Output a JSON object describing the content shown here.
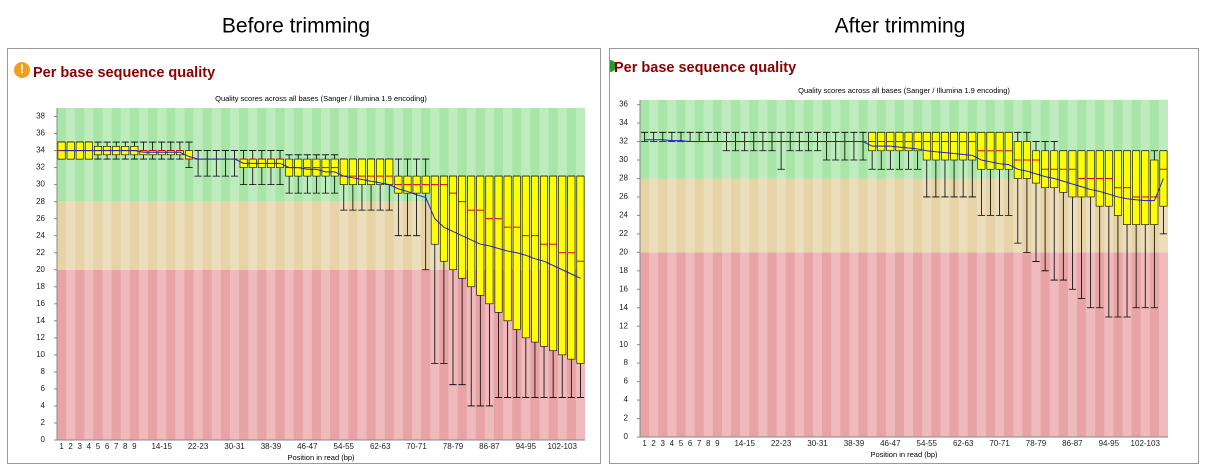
{
  "chart_data": [
    {
      "type": "box",
      "heading": "Before trimming",
      "title": "Per base sequence quality",
      "subtitle": "Quality scores across all bases (Sanger / Illumina 1.9 encoding)",
      "xlabel": "Position in read (bp)",
      "categories": [
        "1",
        "2",
        "3",
        "4",
        "5",
        "6",
        "7",
        "8",
        "9",
        null,
        null,
        "14-15",
        null,
        null,
        null,
        "22-23",
        null,
        null,
        null,
        "30-31",
        null,
        null,
        null,
        "38-39",
        null,
        null,
        null,
        "46-47",
        null,
        null,
        null,
        "54-55",
        null,
        null,
        null,
        "62-63",
        null,
        null,
        null,
        "70-71",
        null,
        null,
        null,
        "78-79",
        null,
        null,
        null,
        "86-87",
        null,
        null,
        null,
        "94-95",
        null,
        null,
        null,
        "102-103",
        null,
        null
      ],
      "low": [
        33,
        33,
        33,
        33,
        33,
        33,
        33,
        33,
        33,
        33,
        33,
        33,
        33,
        33,
        32,
        31,
        31,
        31,
        31,
        31,
        30,
        30,
        30,
        30,
        30,
        29,
        29,
        29,
        29,
        29,
        29,
        27,
        27,
        27,
        27,
        27,
        27,
        24,
        24,
        24,
        20,
        9,
        9,
        6.5,
        6.5,
        4,
        4,
        4,
        5,
        5,
        5,
        5,
        5,
        5,
        5,
        5,
        5,
        5
      ],
      "q1": [
        33,
        33,
        33,
        33,
        33.5,
        33.5,
        33.5,
        33.5,
        33.5,
        33.5,
        33.5,
        33.5,
        33.5,
        33.5,
        33,
        33,
        33,
        33,
        33,
        33,
        32,
        32,
        32,
        32,
        32,
        31,
        31,
        31,
        31,
        31,
        31,
        30,
        30,
        30,
        30,
        30,
        30,
        29,
        29,
        29,
        29,
        23,
        21,
        20,
        19,
        18,
        17,
        16,
        15,
        14,
        13,
        12,
        11.5,
        11,
        10.5,
        10,
        9.5,
        9
      ],
      "median": [
        34,
        34,
        34,
        34,
        34,
        34,
        34,
        34,
        34,
        34,
        34,
        34,
        34,
        34,
        33,
        33,
        33,
        33,
        33,
        33,
        33,
        33,
        33,
        33,
        33,
        32,
        32,
        32,
        32,
        32,
        32,
        31,
        31,
        31,
        31,
        31,
        31,
        30,
        30,
        30,
        30,
        30,
        30,
        29,
        28,
        27,
        27,
        26,
        26,
        25,
        25,
        24,
        24,
        23,
        23,
        22,
        22,
        21
      ],
      "q3": [
        35,
        35,
        35,
        35,
        34.5,
        34.5,
        34.5,
        34.5,
        34.5,
        34,
        34,
        34,
        34,
        34,
        34,
        33,
        33,
        33,
        33,
        33,
        33,
        33,
        33,
        33,
        33,
        33,
        33,
        33,
        33,
        33,
        33,
        33,
        33,
        33,
        33,
        33,
        33,
        31,
        31,
        31,
        31,
        31,
        31,
        31,
        31,
        31,
        31,
        31,
        31,
        31,
        31,
        31,
        31,
        31,
        31,
        31,
        31,
        31
      ],
      "high": [
        35,
        35,
        35,
        35,
        35,
        35,
        35,
        35,
        35,
        35,
        35,
        35,
        35,
        35,
        35,
        34,
        34,
        34,
        34,
        34,
        34,
        34,
        34,
        34,
        34,
        33.5,
        33.5,
        33.5,
        33.5,
        33.5,
        33.5,
        33,
        33,
        33,
        33,
        33,
        33,
        33,
        33,
        33,
        33,
        31,
        31,
        31,
        31,
        31,
        31,
        31,
        31,
        31,
        31,
        31,
        31,
        31,
        31,
        31,
        31,
        31
      ],
      "mean": [
        34,
        34,
        34,
        34,
        34,
        34,
        34,
        34,
        34,
        33.8,
        33.8,
        33.8,
        33.8,
        33.8,
        33.3,
        33,
        33,
        33,
        33,
        33,
        32.5,
        32.5,
        32.5,
        32.5,
        32.5,
        32,
        32,
        31.8,
        31.8,
        31.5,
        31.5,
        31,
        30.8,
        30.6,
        30.4,
        30.2,
        30,
        29.5,
        29.2,
        28.8,
        28.5,
        26,
        25,
        24.5,
        24,
        23.5,
        23,
        22.8,
        22.5,
        22.2,
        22,
        21.7,
        21.3,
        21,
        20.5,
        20,
        19.5,
        19
      ],
      "box_color": "#ffff00",
      "median_color": "#e00000",
      "mean_color": "#2020d0",
      "bands": [
        {
          "from": 0,
          "to": 20,
          "color": "#e8a3a6"
        },
        {
          "from": 20,
          "to": 28,
          "color": "#e6d3a6"
        },
        {
          "from": 28,
          "to": 39,
          "color": "#a8e6a8"
        }
      ],
      "ylim": [
        0,
        39
      ],
      "yticks": [
        0,
        2,
        4,
        6,
        8,
        10,
        12,
        14,
        16,
        18,
        20,
        22,
        24,
        26,
        28,
        30,
        32,
        34,
        36,
        38
      ]
    },
    {
      "type": "box",
      "heading": "After trimming",
      "title": "Per base sequence quality",
      "subtitle": "Quality scores across all bases (Sanger / Illumina 1.9 encoding)",
      "xlabel": "Position in read (bp)",
      "categories": [
        "1",
        "2",
        "3",
        "4",
        "5",
        "6",
        "7",
        "8",
        "9",
        null,
        null,
        "14-15",
        null,
        null,
        null,
        "22-23",
        null,
        null,
        null,
        "30-31",
        null,
        null,
        null,
        "38-39",
        null,
        null,
        null,
        "46-47",
        null,
        null,
        null,
        "54-55",
        null,
        null,
        null,
        "62-63",
        null,
        null,
        null,
        "70-71",
        null,
        null,
        null,
        "78-79",
        null,
        null,
        null,
        "86-87",
        null,
        null,
        null,
        "94-95",
        null,
        null,
        null,
        "102-103",
        null,
        null
      ],
      "low": [
        32,
        32,
        32,
        32,
        32,
        32,
        32,
        32,
        32,
        31,
        31,
        31,
        31,
        31,
        31,
        29,
        31,
        31,
        31,
        31,
        30,
        30,
        30,
        30,
        30,
        29,
        29,
        29,
        29,
        29,
        29,
        26,
        26,
        26,
        26,
        26,
        26,
        24,
        24,
        24,
        24,
        21,
        20,
        19,
        18,
        17,
        17,
        16,
        15,
        14,
        14,
        13,
        13,
        13,
        14,
        14,
        14,
        22
      ],
      "q1": [
        32,
        32,
        32,
        32,
        32,
        32,
        32,
        32,
        32,
        32,
        32,
        32,
        32,
        32,
        32,
        32,
        32,
        32,
        32,
        32,
        32,
        32,
        32,
        32,
        32,
        31,
        31,
        31,
        31,
        31,
        31,
        30,
        30,
        30,
        30,
        30,
        30,
        29,
        29,
        29,
        29,
        28,
        28,
        27.5,
        27,
        27,
        26.5,
        26,
        26,
        26,
        25,
        25,
        24,
        23,
        23,
        23,
        23,
        25
      ],
      "median": [
        32,
        32,
        32,
        32,
        32,
        32,
        32,
        32,
        32,
        32,
        32,
        32,
        32,
        32,
        32,
        32,
        32,
        32,
        32,
        32,
        32,
        32,
        32,
        32,
        32,
        32,
        32,
        32,
        32,
        32,
        32,
        32,
        32,
        32,
        32,
        32,
        32,
        31,
        31,
        31,
        31,
        30,
        30,
        30,
        29,
        29,
        29,
        29,
        28,
        28,
        28,
        28,
        27,
        27,
        26,
        26,
        26,
        29
      ],
      "q3": [
        32,
        32,
        32,
        32,
        32,
        32,
        32,
        32,
        32,
        32,
        32,
        32,
        32,
        32,
        32,
        32,
        32,
        32,
        32,
        32,
        32,
        32,
        32,
        32,
        32,
        33,
        33,
        33,
        33,
        33,
        33,
        33,
        33,
        33,
        33,
        33,
        33,
        33,
        33,
        33,
        33,
        32,
        32,
        31,
        31,
        31,
        31,
        31,
        31,
        31,
        31,
        31,
        31,
        31,
        31,
        31,
        30,
        31
      ],
      "high": [
        33,
        33,
        33,
        33,
        33,
        33,
        33,
        33,
        33,
        33,
        33,
        33,
        33,
        33,
        33,
        33,
        33,
        33,
        33,
        33,
        33,
        33,
        33,
        33,
        33,
        33,
        33,
        33,
        33,
        33,
        33,
        33,
        33,
        33,
        33,
        33,
        33,
        33,
        33,
        33,
        33,
        33,
        33,
        32,
        32,
        32,
        31,
        31,
        31,
        31,
        31,
        31,
        31,
        31,
        31,
        31,
        31,
        31
      ],
      "mean": [
        32.2,
        32.2,
        32.2,
        32.1,
        32.1,
        32,
        32,
        32,
        32,
        32,
        32,
        32,
        32,
        32,
        32,
        32,
        32,
        32,
        32,
        32,
        32,
        32,
        32,
        32,
        32,
        31.5,
        31.5,
        31.5,
        31.4,
        31.3,
        31.2,
        31,
        30.9,
        30.8,
        30.7,
        30.6,
        30.5,
        30,
        29.8,
        29.6,
        29.5,
        29,
        28.8,
        28.5,
        28.2,
        28,
        27.7,
        27.4,
        27.1,
        26.8,
        26.6,
        26.3,
        26,
        25.8,
        25.7,
        25.6,
        25.6,
        28
      ],
      "box_color": "#ffff00",
      "median_color": "#e00000",
      "mean_color": "#2020d0",
      "bands": [
        {
          "from": 0,
          "to": 20,
          "color": "#e8a3a6"
        },
        {
          "from": 20,
          "to": 28,
          "color": "#e6d3a6"
        },
        {
          "from": 28,
          "to": 36.5,
          "color": "#a8e6a8"
        }
      ],
      "ylim": [
        0,
        36.5
      ],
      "yticks": [
        0,
        2,
        4,
        6,
        8,
        10,
        12,
        14,
        16,
        18,
        20,
        22,
        24,
        26,
        28,
        30,
        32,
        34,
        36
      ]
    }
  ]
}
